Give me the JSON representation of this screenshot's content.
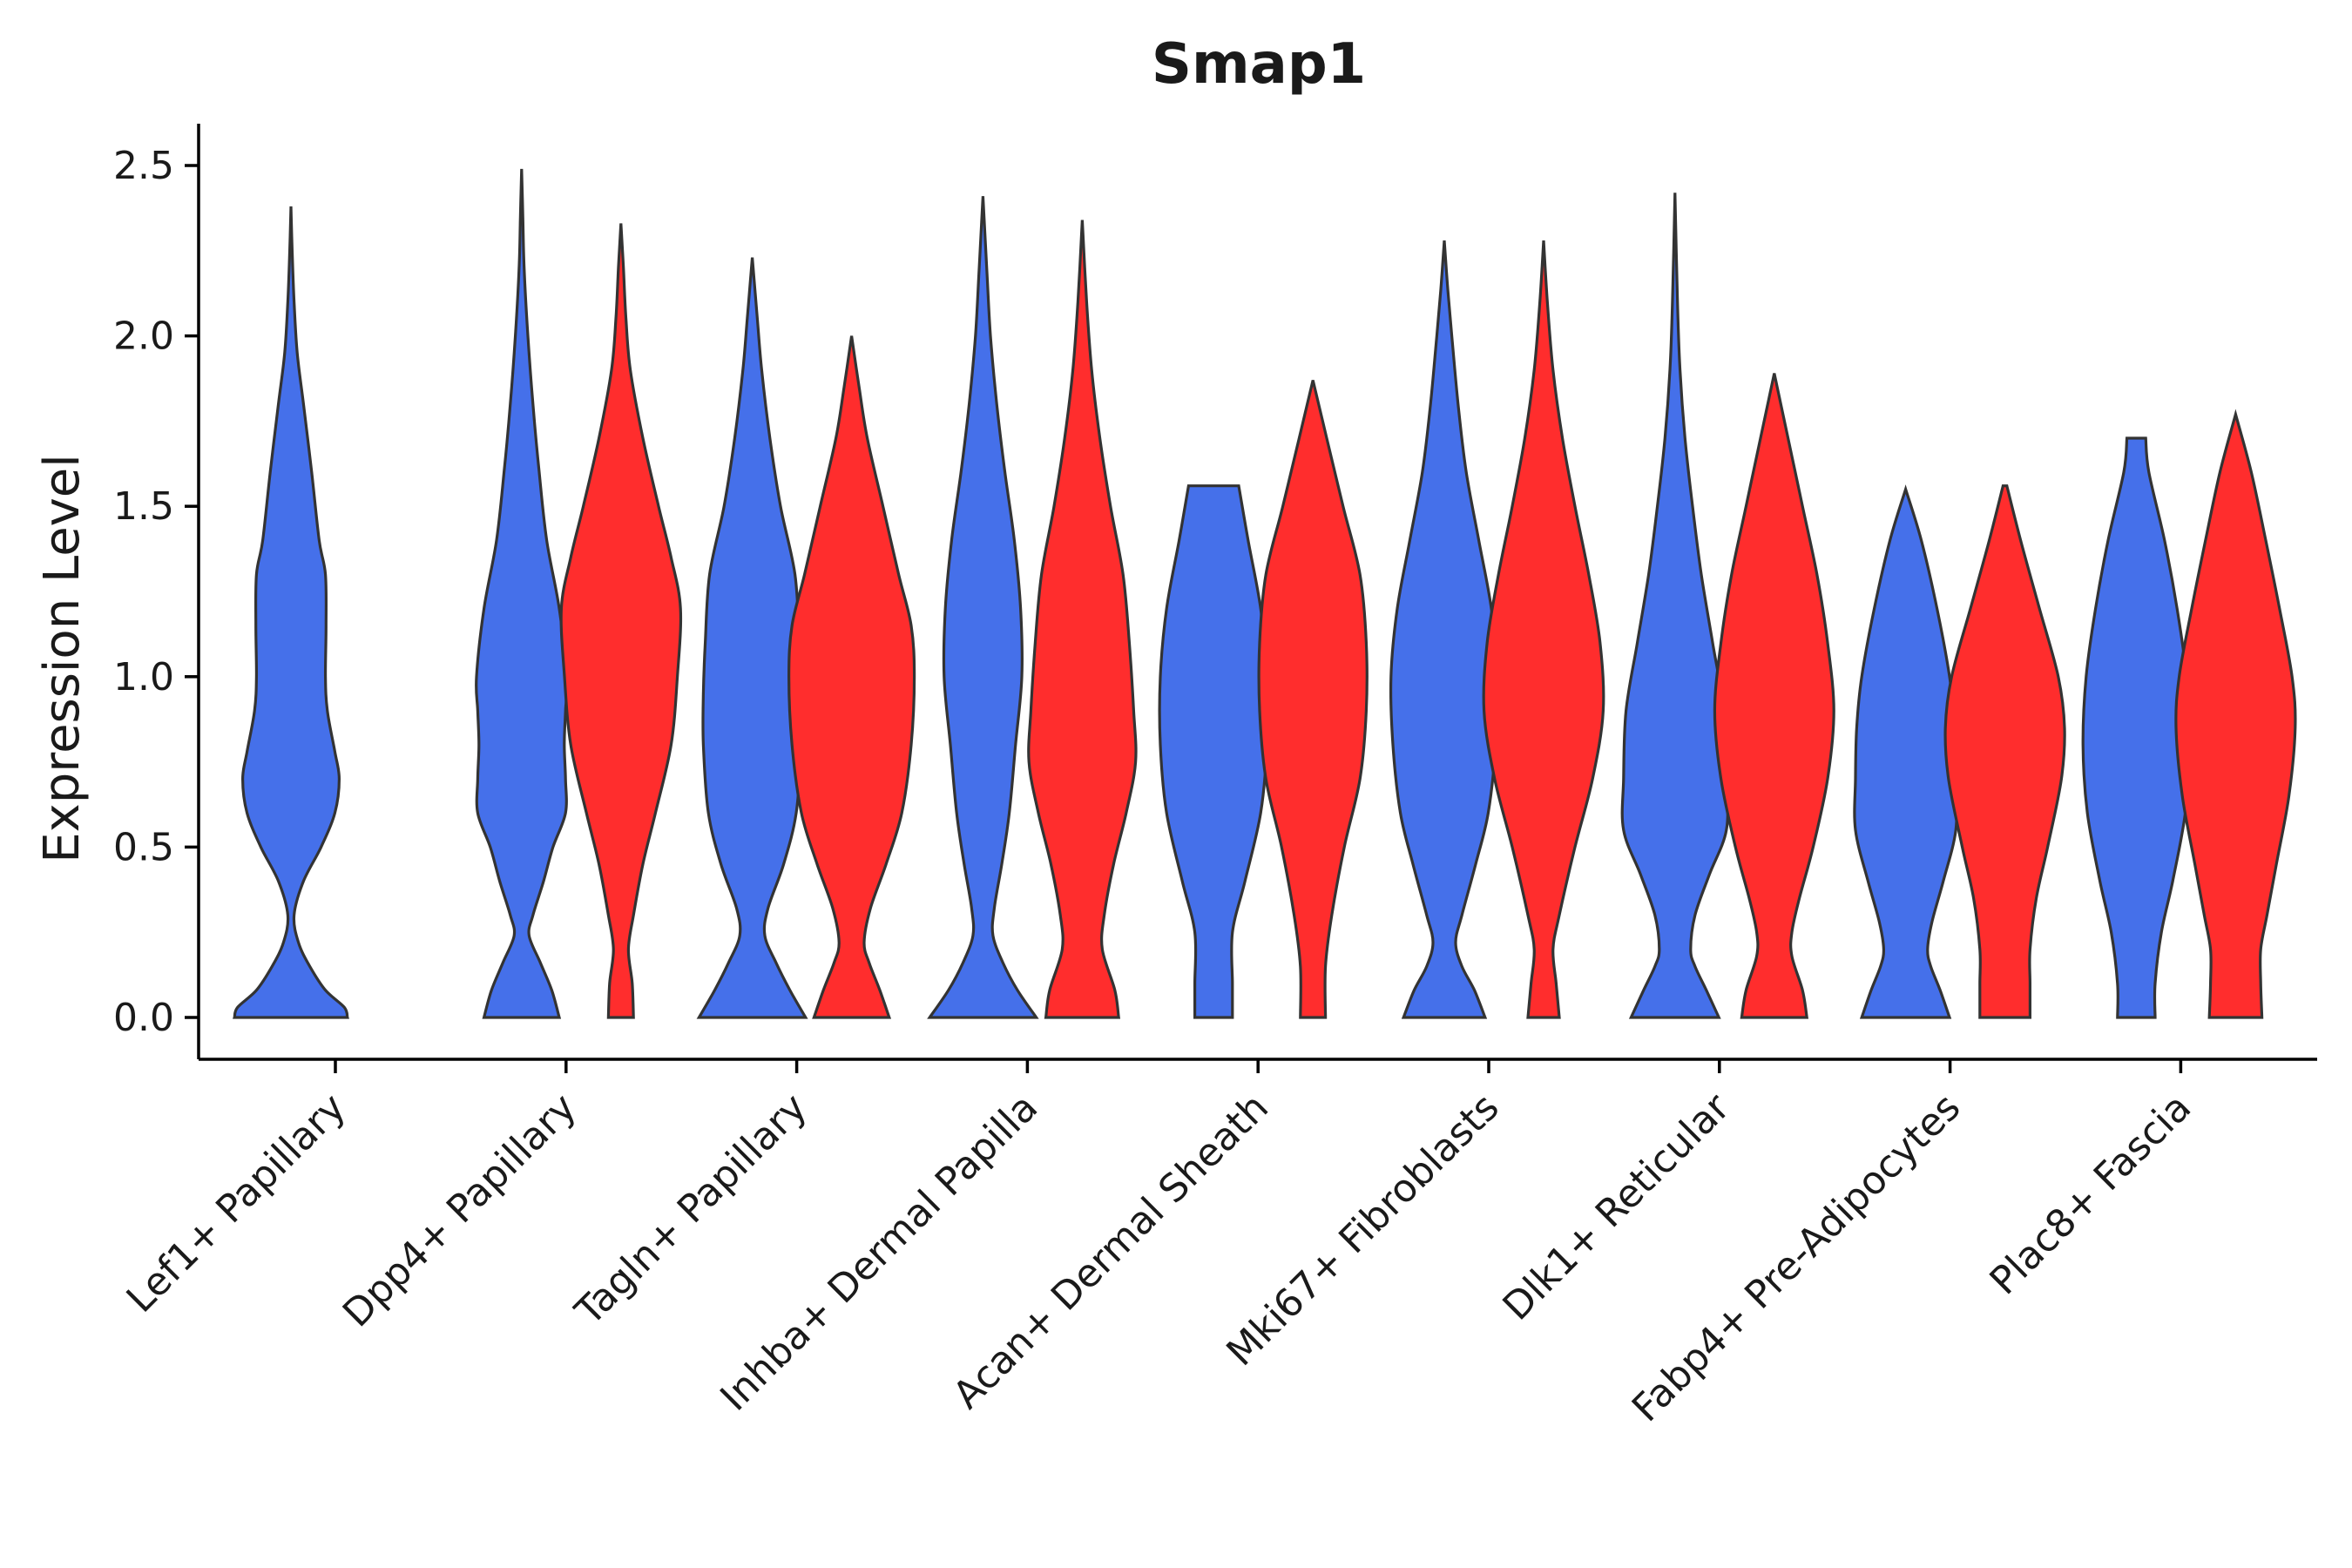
{
  "chart_data": {
    "type": "violin",
    "title": "Smap1",
    "xlabel": "",
    "ylabel": "Expression Level",
    "ylim": [
      0,
      2.5
    ],
    "yticks": [
      "0.0",
      "0.5",
      "1.0",
      "1.5",
      "2.0",
      "2.5"
    ],
    "colors": {
      "group_a": "#4570EA",
      "group_b": "#FF2D2D"
    },
    "categories": [
      "Lef1+ Papillary",
      "Dpp4+ Papillary",
      "Tagln+ Papillary",
      "Inhba+ Dermal Papilla",
      "Acan+ Dermal Sheath",
      "Mki67+ Fibroblasts",
      "Dlk1+ Reticular",
      "Fabp4+ Pre-Adipocytes",
      "Plac8+ Fascia"
    ],
    "violins": [
      {
        "category": "Lef1+ Papillary",
        "group": "a",
        "max": 2.38,
        "profile": [
          [
            0,
            0.9
          ],
          [
            0.03,
            0.85
          ],
          [
            0.08,
            0.55
          ],
          [
            0.15,
            0.3
          ],
          [
            0.22,
            0.12
          ],
          [
            0.3,
            0.05
          ],
          [
            0.4,
            0.2
          ],
          [
            0.5,
            0.48
          ],
          [
            0.6,
            0.7
          ],
          [
            0.7,
            0.77
          ],
          [
            0.78,
            0.7
          ],
          [
            0.9,
            0.58
          ],
          [
            1.0,
            0.55
          ],
          [
            1.15,
            0.56
          ],
          [
            1.3,
            0.55
          ],
          [
            1.4,
            0.45
          ],
          [
            1.6,
            0.33
          ],
          [
            1.8,
            0.2
          ],
          [
            1.95,
            0.1
          ],
          [
            2.1,
            0.05
          ],
          [
            2.25,
            0.02
          ],
          [
            2.38,
            0
          ]
        ]
      },
      {
        "category": "Dpp4+ Papillary",
        "group": "a",
        "max": 2.49,
        "profile": [
          [
            0,
            0.6
          ],
          [
            0.08,
            0.48
          ],
          [
            0.16,
            0.3
          ],
          [
            0.24,
            0.12
          ],
          [
            0.3,
            0.18
          ],
          [
            0.4,
            0.35
          ],
          [
            0.5,
            0.5
          ],
          [
            0.6,
            0.7
          ],
          [
            0.7,
            0.7
          ],
          [
            0.8,
            0.68
          ],
          [
            0.9,
            0.7
          ],
          [
            1.0,
            0.72
          ],
          [
            1.2,
            0.6
          ],
          [
            1.4,
            0.4
          ],
          [
            1.6,
            0.28
          ],
          [
            1.8,
            0.18
          ],
          [
            2.0,
            0.1
          ],
          [
            2.2,
            0.04
          ],
          [
            2.35,
            0.02
          ],
          [
            2.49,
            0
          ]
        ]
      },
      {
        "category": "Dpp4+ Papillary",
        "group": "b",
        "max": 2.33,
        "profile": [
          [
            0,
            0.2
          ],
          [
            0.1,
            0.18
          ],
          [
            0.2,
            0.12
          ],
          [
            0.3,
            0.2
          ],
          [
            0.45,
            0.35
          ],
          [
            0.6,
            0.55
          ],
          [
            0.8,
            0.8
          ],
          [
            1.0,
            0.9
          ],
          [
            1.2,
            0.95
          ],
          [
            1.35,
            0.8
          ],
          [
            1.5,
            0.6
          ],
          [
            1.7,
            0.35
          ],
          [
            1.9,
            0.15
          ],
          [
            2.05,
            0.08
          ],
          [
            2.2,
            0.04
          ],
          [
            2.33,
            0
          ]
        ]
      },
      {
        "category": "Tagln+ Papillary",
        "group": "a",
        "max": 2.23,
        "profile": [
          [
            0,
            0.85
          ],
          [
            0.08,
            0.6
          ],
          [
            0.16,
            0.38
          ],
          [
            0.24,
            0.2
          ],
          [
            0.32,
            0.25
          ],
          [
            0.45,
            0.5
          ],
          [
            0.6,
            0.7
          ],
          [
            0.8,
            0.78
          ],
          [
            0.95,
            0.78
          ],
          [
            1.1,
            0.75
          ],
          [
            1.3,
            0.68
          ],
          [
            1.5,
            0.45
          ],
          [
            1.7,
            0.28
          ],
          [
            1.9,
            0.15
          ],
          [
            2.05,
            0.08
          ],
          [
            2.23,
            0
          ]
        ]
      },
      {
        "category": "Tagln+ Papillary",
        "group": "b",
        "max": 2.0,
        "profile": [
          [
            0,
            0.6
          ],
          [
            0.08,
            0.45
          ],
          [
            0.16,
            0.28
          ],
          [
            0.22,
            0.2
          ],
          [
            0.32,
            0.3
          ],
          [
            0.45,
            0.55
          ],
          [
            0.6,
            0.8
          ],
          [
            0.8,
            0.95
          ],
          [
            1.0,
            1.0
          ],
          [
            1.15,
            0.95
          ],
          [
            1.3,
            0.75
          ],
          [
            1.5,
            0.5
          ],
          [
            1.7,
            0.25
          ],
          [
            1.85,
            0.12
          ],
          [
            2.0,
            0
          ]
        ]
      },
      {
        "category": "Inhba+ Dermal Papilla",
        "group": "a",
        "max": 2.41,
        "profile": [
          [
            0,
            0.85
          ],
          [
            0.08,
            0.55
          ],
          [
            0.16,
            0.32
          ],
          [
            0.24,
            0.16
          ],
          [
            0.32,
            0.18
          ],
          [
            0.45,
            0.3
          ],
          [
            0.6,
            0.42
          ],
          [
            0.8,
            0.52
          ],
          [
            1.0,
            0.62
          ],
          [
            1.2,
            0.6
          ],
          [
            1.4,
            0.5
          ],
          [
            1.6,
            0.35
          ],
          [
            1.8,
            0.22
          ],
          [
            2.0,
            0.12
          ],
          [
            2.2,
            0.06
          ],
          [
            2.41,
            0
          ]
        ]
      },
      {
        "category": "Inhba+ Dermal Papilla",
        "group": "b",
        "max": 2.34,
        "profile": [
          [
            0,
            0.58
          ],
          [
            0.08,
            0.52
          ],
          [
            0.2,
            0.32
          ],
          [
            0.3,
            0.35
          ],
          [
            0.45,
            0.5
          ],
          [
            0.6,
            0.7
          ],
          [
            0.75,
            0.85
          ],
          [
            0.9,
            0.82
          ],
          [
            1.1,
            0.75
          ],
          [
            1.3,
            0.65
          ],
          [
            1.5,
            0.45
          ],
          [
            1.7,
            0.28
          ],
          [
            1.9,
            0.15
          ],
          [
            2.1,
            0.07
          ],
          [
            2.34,
            0
          ]
        ]
      },
      {
        "category": "Acan+ Dermal Sheath",
        "group": "a",
        "max": 1.56,
        "profile": [
          [
            0,
            0.3
          ],
          [
            0.1,
            0.3
          ],
          [
            0.25,
            0.3
          ],
          [
            0.4,
            0.5
          ],
          [
            0.6,
            0.75
          ],
          [
            0.8,
            0.85
          ],
          [
            1.0,
            0.85
          ],
          [
            1.2,
            0.75
          ],
          [
            1.4,
            0.55
          ],
          [
            1.56,
            0.4
          ]
        ]
      },
      {
        "category": "Acan+ Dermal Sheath",
        "group": "b",
        "max": 1.87,
        "profile": [
          [
            0,
            0.2
          ],
          [
            0.15,
            0.2
          ],
          [
            0.3,
            0.3
          ],
          [
            0.5,
            0.5
          ],
          [
            0.7,
            0.75
          ],
          [
            0.9,
            0.85
          ],
          [
            1.1,
            0.85
          ],
          [
            1.3,
            0.75
          ],
          [
            1.5,
            0.48
          ],
          [
            1.7,
            0.22
          ],
          [
            1.87,
            0
          ]
        ]
      },
      {
        "category": "Mki67+ Fibroblasts",
        "group": "a",
        "max": 2.28,
        "profile": [
          [
            0,
            0.65
          ],
          [
            0.08,
            0.48
          ],
          [
            0.15,
            0.28
          ],
          [
            0.22,
            0.18
          ],
          [
            0.3,
            0.28
          ],
          [
            0.45,
            0.5
          ],
          [
            0.6,
            0.7
          ],
          [
            0.8,
            0.82
          ],
          [
            1.0,
            0.85
          ],
          [
            1.2,
            0.75
          ],
          [
            1.4,
            0.55
          ],
          [
            1.6,
            0.35
          ],
          [
            1.8,
            0.22
          ],
          [
            2.0,
            0.12
          ],
          [
            2.15,
            0.05
          ],
          [
            2.28,
            0
          ]
        ]
      },
      {
        "category": "Mki67+ Fibroblasts",
        "group": "b",
        "max": 2.28,
        "profile": [
          [
            0,
            0.25
          ],
          [
            0.1,
            0.2
          ],
          [
            0.2,
            0.15
          ],
          [
            0.3,
            0.25
          ],
          [
            0.5,
            0.5
          ],
          [
            0.7,
            0.78
          ],
          [
            0.9,
            0.95
          ],
          [
            1.1,
            0.9
          ],
          [
            1.3,
            0.72
          ],
          [
            1.5,
            0.5
          ],
          [
            1.7,
            0.3
          ],
          [
            1.9,
            0.15
          ],
          [
            2.1,
            0.06
          ],
          [
            2.28,
            0
          ]
        ]
      },
      {
        "category": "Dlk1+ Reticular",
        "group": "a",
        "max": 2.42,
        "profile": [
          [
            0,
            0.7
          ],
          [
            0.08,
            0.5
          ],
          [
            0.15,
            0.32
          ],
          [
            0.2,
            0.25
          ],
          [
            0.3,
            0.32
          ],
          [
            0.42,
            0.55
          ],
          [
            0.55,
            0.82
          ],
          [
            0.7,
            0.82
          ],
          [
            0.9,
            0.78
          ],
          [
            1.1,
            0.6
          ],
          [
            1.3,
            0.42
          ],
          [
            1.5,
            0.28
          ],
          [
            1.7,
            0.16
          ],
          [
            1.9,
            0.08
          ],
          [
            2.1,
            0.04
          ],
          [
            2.42,
            0
          ]
        ]
      },
      {
        "category": "Dlk1+ Reticular",
        "group": "b",
        "max": 1.89,
        "profile": [
          [
            0,
            0.52
          ],
          [
            0.08,
            0.45
          ],
          [
            0.18,
            0.28
          ],
          [
            0.25,
            0.28
          ],
          [
            0.35,
            0.4
          ],
          [
            0.5,
            0.62
          ],
          [
            0.7,
            0.85
          ],
          [
            0.9,
            0.95
          ],
          [
            1.1,
            0.85
          ],
          [
            1.3,
            0.68
          ],
          [
            1.5,
            0.45
          ],
          [
            1.7,
            0.22
          ],
          [
            1.89,
            0
          ]
        ]
      },
      {
        "category": "Fabp4+ Pre-Adipocytes",
        "group": "a",
        "max": 1.55,
        "profile": [
          [
            0,
            0.7
          ],
          [
            0.08,
            0.55
          ],
          [
            0.15,
            0.4
          ],
          [
            0.2,
            0.35
          ],
          [
            0.28,
            0.42
          ],
          [
            0.4,
            0.6
          ],
          [
            0.55,
            0.8
          ],
          [
            0.7,
            0.8
          ],
          [
            0.85,
            0.78
          ],
          [
            1.0,
            0.7
          ],
          [
            1.2,
            0.5
          ],
          [
            1.4,
            0.25
          ],
          [
            1.55,
            0
          ]
        ]
      },
      {
        "category": "Fabp4+ Pre-Adipocytes",
        "group": "b",
        "max": 1.56,
        "profile": [
          [
            0,
            0.4
          ],
          [
            0.1,
            0.4
          ],
          [
            0.2,
            0.4
          ],
          [
            0.35,
            0.5
          ],
          [
            0.5,
            0.68
          ],
          [
            0.7,
            0.9
          ],
          [
            0.85,
            0.95
          ],
          [
            1.0,
            0.85
          ],
          [
            1.2,
            0.55
          ],
          [
            1.4,
            0.25
          ],
          [
            1.56,
            0.03
          ]
        ]
      },
      {
        "category": "Plac8+ Fascia",
        "group": "a",
        "max": 1.7,
        "profile": [
          [
            0,
            0.3
          ],
          [
            0.1,
            0.3
          ],
          [
            0.25,
            0.4
          ],
          [
            0.4,
            0.58
          ],
          [
            0.6,
            0.78
          ],
          [
            0.8,
            0.85
          ],
          [
            1.0,
            0.8
          ],
          [
            1.2,
            0.65
          ],
          [
            1.4,
            0.45
          ],
          [
            1.6,
            0.2
          ],
          [
            1.7,
            0.15
          ]
        ]
      },
      {
        "category": "Plac8+ Fascia",
        "group": "b",
        "max": 1.77,
        "profile": [
          [
            0,
            0.42
          ],
          [
            0.1,
            0.4
          ],
          [
            0.2,
            0.4
          ],
          [
            0.3,
            0.5
          ],
          [
            0.45,
            0.65
          ],
          [
            0.65,
            0.85
          ],
          [
            0.85,
            0.95
          ],
          [
            1.0,
            0.9
          ],
          [
            1.2,
            0.7
          ],
          [
            1.4,
            0.48
          ],
          [
            1.6,
            0.25
          ],
          [
            1.77,
            0
          ]
        ]
      }
    ]
  }
}
